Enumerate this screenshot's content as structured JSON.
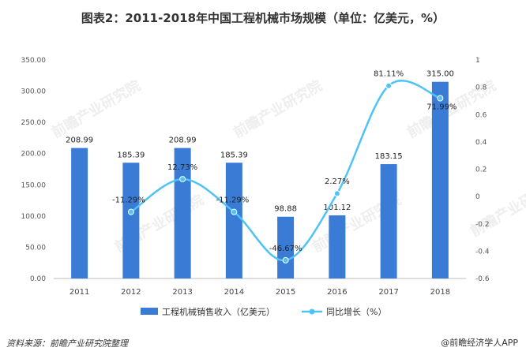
{
  "title": "图表2：2011-2018年中国工程机械市场规模（单位：亿美元，%）",
  "footer": {
    "source": "资料来源：前瞻产业研究院整理",
    "brand": "@前瞻经济学人APP"
  },
  "watermark": "前瞻产业研究院",
  "chart_data": {
    "type": "bar",
    "categories": [
      "2011",
      "2012",
      "2013",
      "2014",
      "2015",
      "2016",
      "2017",
      "2018"
    ],
    "series": [
      {
        "name": "工程机械销售收入（亿美元）",
        "type": "bar",
        "axis": "left",
        "values": [
          208.99,
          185.39,
          208.99,
          185.39,
          98.88,
          101.12,
          183.15,
          315.0
        ],
        "labels": [
          "208.99",
          "185.39",
          "208.99",
          "185.39",
          "98.88",
          "101.12",
          "183.15",
          "315.00"
        ],
        "color": "#3a7bd5"
      },
      {
        "name": "同比增长（%）",
        "type": "line",
        "axis": "right",
        "values": [
          null,
          -0.1129,
          0.1273,
          -0.1129,
          -0.4667,
          0.0227,
          0.8111,
          0.7199
        ],
        "labels": [
          "",
          "-11.29%",
          "12.73%",
          "-11.29%",
          "-46.67%",
          "2.27%",
          "81.11%",
          "71.99%"
        ],
        "color": "#4fc3f7"
      }
    ],
    "y_left": {
      "min": 0,
      "max": 350,
      "ticks": [
        "0.00",
        "50.00",
        "100.00",
        "150.00",
        "200.00",
        "250.00",
        "300.00",
        "350.00"
      ]
    },
    "y_right": {
      "min": -0.6,
      "max": 1,
      "ticks": [
        "-0.6",
        "-0.4",
        "-0.2",
        "0",
        "0.2",
        "0.4",
        "0.6",
        "0.8",
        "1"
      ]
    },
    "grid": false,
    "legend": "bottom"
  }
}
